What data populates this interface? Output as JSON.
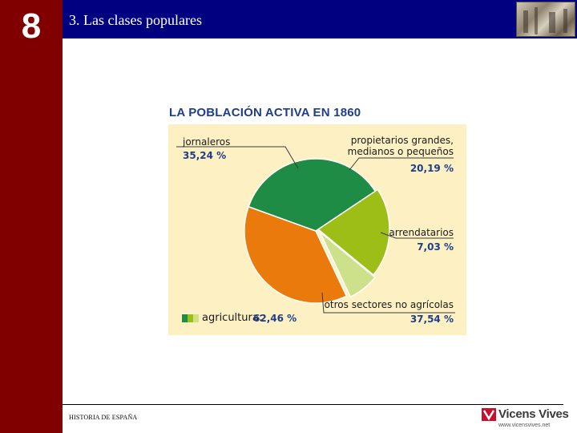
{
  "slide": {
    "chapter_number": "8",
    "title": "3. Las clases populares",
    "footer": "HISTORIA DE ESPAÑA",
    "brand": "Vicens Vives",
    "brand_url": "www.vicensvives.net"
  },
  "chart_data": {
    "type": "pie",
    "title": "LA POBLACIÓN ACTIVA EN 1860",
    "slices": [
      {
        "label": "jornaleros",
        "value": 35.24,
        "display": "35,24 %",
        "group": "agricultura",
        "color": "#1e8c45"
      },
      {
        "label": "propietarios grandes,\nmedianos o pequeños",
        "line1": "propietarios grandes,",
        "line2": "medianos o pequeños",
        "value": 20.19,
        "display": "20,19 %",
        "group": "agricultura",
        "color": "#9dbd17"
      },
      {
        "label": "arrendatarios",
        "value": 7.03,
        "display": "7,03 %",
        "group": "agricultura",
        "color": "#cde08a"
      },
      {
        "label": "otros sectores no agrícolas",
        "value": 37.54,
        "display": "37,54 %",
        "group": "no agrícola",
        "color": "#ea7a0c"
      }
    ],
    "legend": {
      "label": "agricultura:",
      "value": 62.46,
      "display": "62,46 %",
      "colors": [
        "#1e8c45",
        "#9dbd17",
        "#cde08a"
      ]
    }
  }
}
